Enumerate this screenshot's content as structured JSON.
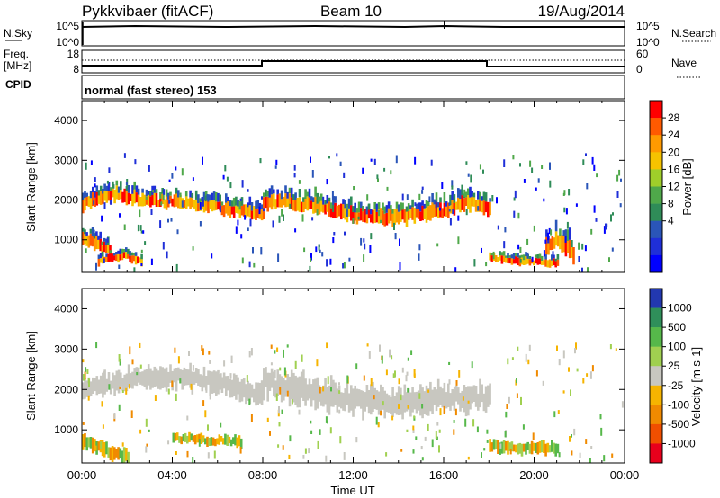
{
  "header": {
    "station": "Pykkvibaer (fitACF)",
    "beam": "Beam 10",
    "date": "19/Aug/2014"
  },
  "noise_panel": {
    "left_label": "N.Sky",
    "right_label": "N.Search",
    "left_ticks": [
      "10^5",
      "10^0"
    ],
    "right_ticks": [
      "10^5",
      "10^0"
    ]
  },
  "freq_panel": {
    "left_label_line1": "Freq.",
    "left_label_line2": "[MHz]",
    "right_label": "Nave",
    "left_ticks": [
      "18",
      "8"
    ],
    "right_ticks": [
      "60",
      "0"
    ]
  },
  "cpid_panel": {
    "label": "CPID",
    "text": "normal (fast stereo) 153"
  },
  "chart_data": [
    {
      "type": "heatmap",
      "quantity": "Power",
      "ylabel": "Slant Range [km]",
      "colorbar_label": "Power [dB]",
      "x_range_hours": [
        0,
        24
      ],
      "ylim": [
        180,
        4500
      ],
      "yticks": [
        1000,
        2000,
        3000,
        4000
      ],
      "colorbar_ticks": [
        "28",
        "24",
        "20",
        "16",
        "12",
        "8",
        "4"
      ],
      "colorbar_colors": [
        "#ff0000",
        "#ff5a00",
        "#ff9a00",
        "#f6c300",
        "#9fce2a",
        "#4fa84a",
        "#2f8c58",
        "#2a55b8",
        "#1f2fd8",
        "#0000ff"
      ],
      "echo_bands": [
        {
          "t": [
            0.0,
            1.5,
            2.5,
            4.0,
            5.5,
            7.0,
            8.0
          ],
          "r": [
            1900,
            2150,
            2000,
            1950,
            1850,
            1700,
            1650
          ],
          "w": 150
        },
        {
          "t": [
            8.0,
            9.0,
            10.5,
            12.0,
            14.0,
            16.0,
            17.0,
            18.0
          ],
          "r": [
            1950,
            1950,
            1800,
            1600,
            1550,
            1750,
            1950,
            1800
          ],
          "w": 170
        },
        {
          "t": [
            0.0,
            0.6,
            1.2
          ],
          "r": [
            1050,
            900,
            700
          ],
          "w": 140
        },
        {
          "t": [
            0.7,
            1.8,
            2.6
          ],
          "r": [
            450,
            600,
            450
          ],
          "w": 90
        },
        {
          "t": [
            18.0,
            19.5,
            21.0
          ],
          "r": [
            550,
            450,
            420
          ],
          "w": 90
        },
        {
          "t": [
            20.5,
            21.0,
            21.7
          ],
          "r": [
            800,
            1000,
            650
          ],
          "w": 200
        }
      ]
    },
    {
      "type": "heatmap",
      "quantity": "Velocity",
      "xlabel": "Time UT",
      "ylabel": "Slant Range [km]",
      "colorbar_label": "Velocity [m s-1]",
      "x_range_hours": [
        0,
        24
      ],
      "xtick_labels": [
        "00:00",
        "04:00",
        "08:00",
        "12:00",
        "16:00",
        "20:00",
        "00:00"
      ],
      "ylim": [
        180,
        4500
      ],
      "yticks": [
        1000,
        2000,
        3000,
        4000
      ],
      "colorbar_ticks": [
        "1000",
        "500",
        "100",
        "25",
        "-25",
        "-100",
        "-500",
        "-1000"
      ],
      "colorbar_colors": [
        "#2238b0",
        "#2f8f5a",
        "#56b84a",
        "#a0d050",
        "#c8c7c0",
        "#f6b400",
        "#f08a00",
        "#f04f00",
        "#e8001c"
      ],
      "echo_bands": [
        {
          "t": [
            0.0,
            2.0,
            4.0,
            6.0,
            8.0
          ],
          "r": [
            1950,
            2250,
            2300,
            2200,
            1850
          ],
          "w": 260
        },
        {
          "t": [
            8.0,
            10.0,
            12.0,
            14.0,
            16.0,
            18.0
          ],
          "r": [
            2200,
            1950,
            1750,
            1650,
            1800,
            1800
          ],
          "w": 330
        },
        {
          "t": [
            0.0,
            1.0,
            2.0
          ],
          "r": [
            700,
            500,
            350
          ],
          "w": 170
        },
        {
          "t": [
            4.0,
            5.5,
            7.0
          ],
          "r": [
            800,
            750,
            700
          ],
          "w": 120
        },
        {
          "t": [
            18.0,
            19.5,
            21.0
          ],
          "r": [
            600,
            550,
            550
          ],
          "w": 140
        }
      ]
    }
  ]
}
